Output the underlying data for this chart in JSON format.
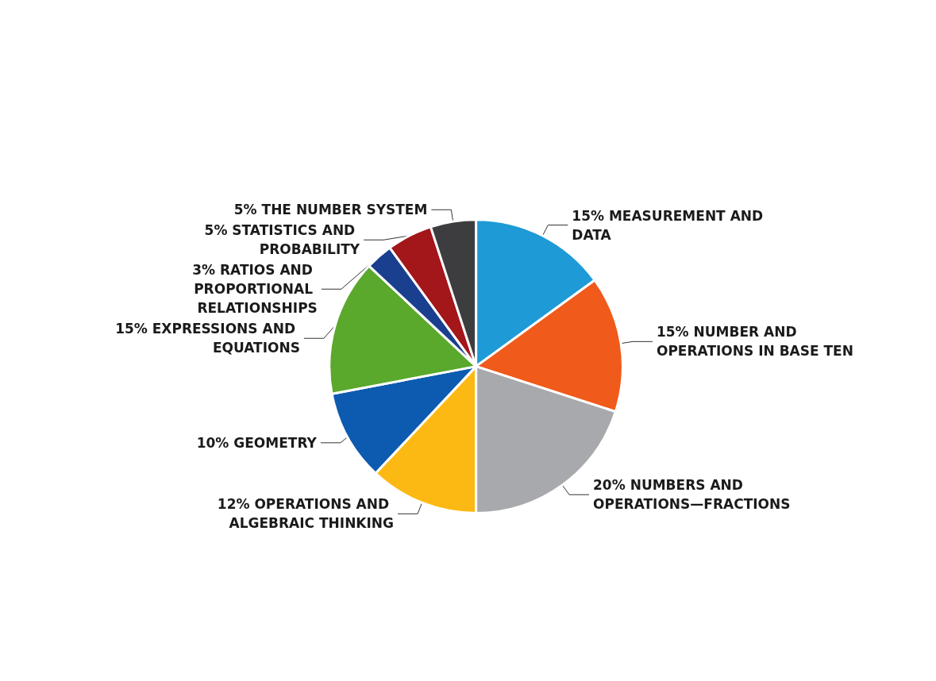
{
  "chart_data": {
    "type": "pie",
    "categories": [
      "MEASUREMENT AND DATA",
      "NUMBER AND OPERATIONS IN BASE TEN",
      "NUMBERS AND OPERATIONS—FRACTIONS",
      "OPERATIONS AND ALGEBRAIC THINKING",
      "GEOMETRY",
      "EXPRESSIONS AND EQUATIONS",
      "RATIOS AND PROPORTIONAL RELATIONSHIPS",
      "STATISTICS AND PROBABILITY",
      "THE NUMBER SYSTEM"
    ],
    "values": [
      15,
      15,
      20,
      12,
      10,
      15,
      3,
      5,
      5
    ],
    "value_labels": [
      "15%",
      "15%",
      "20%",
      "12%",
      "10%",
      "15%",
      "3%",
      "5%",
      "5%"
    ],
    "colors": [
      "#1e9ad6",
      "#f05a1a",
      "#a7a9ac",
      "#fdb913",
      "#0d5bb0",
      "#5aa82c",
      "#1b3f8f",
      "#a3161a",
      "#3d3d40"
    ],
    "legend": false
  }
}
